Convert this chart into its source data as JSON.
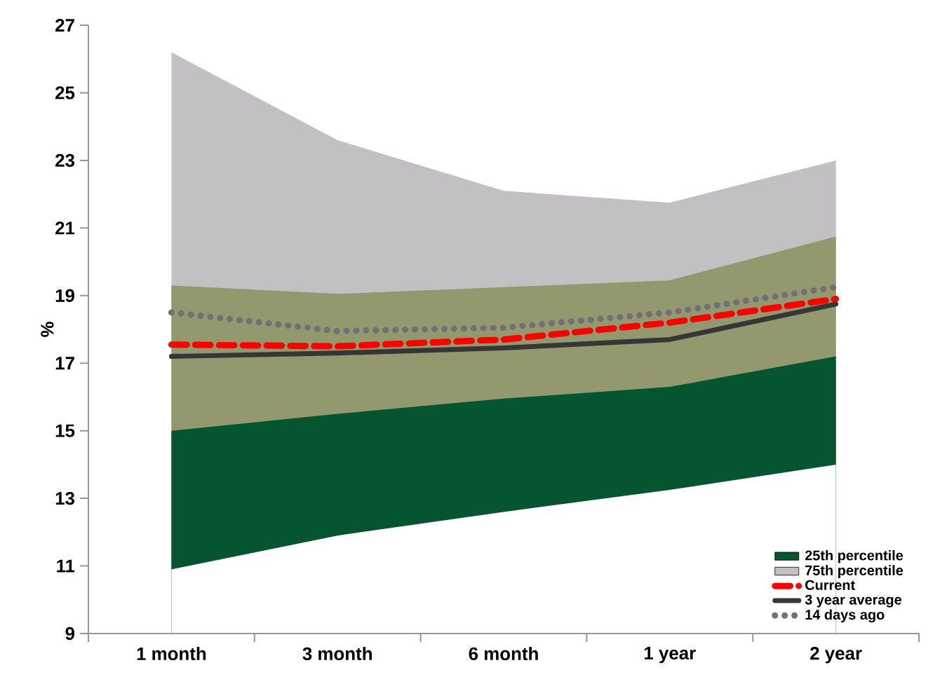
{
  "chart_data": {
    "type": "area",
    "ylabel": "%",
    "categories": [
      "1 month",
      "3 month",
      "6 month",
      "1 year",
      "2 year"
    ],
    "ylim": [
      9,
      27
    ],
    "yticks": [
      9,
      11,
      13,
      15,
      17,
      19,
      21,
      23,
      25,
      27
    ],
    "grid": false,
    "legend": "bottom right",
    "marker": "none",
    "series": [
      {
        "name": "75th percentile",
        "color": "#c2c0c3",
        "values": [
          26.2,
          23.6,
          22.1,
          21.75,
          23.0
        ]
      },
      {
        "color": "#94986e",
        "values": [
          19.3,
          19.05,
          19.25,
          19.45,
          20.75
        ]
      },
      {
        "name": "25th percentile",
        "color": "#045530",
        "values": [
          15.0,
          15.5,
          15.95,
          16.3,
          17.2
        ]
      },
      {
        "color": "#ffffff",
        "values": [
          10.9,
          11.9,
          12.6,
          13.25,
          14.0
        ]
      },
      {
        "name": "Current",
        "type": "line",
        "line_style": "dashed",
        "color": "#ff0000",
        "values": [
          17.55,
          17.5,
          17.7,
          18.2,
          18.9
        ]
      },
      {
        "name": "3 year average",
        "type": "line",
        "line_style": "solid",
        "color": "#363636",
        "values": [
          17.2,
          17.3,
          17.45,
          17.7,
          18.75
        ]
      },
      {
        "name": "14 days ago",
        "type": "line",
        "line_style": "dotted",
        "color": "#737075",
        "values": [
          18.5,
          17.95,
          18.05,
          18.5,
          19.25
        ]
      }
    ]
  }
}
